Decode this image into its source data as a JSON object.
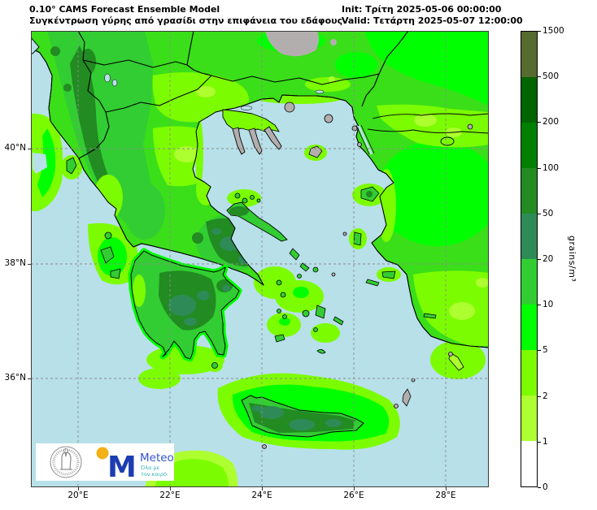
{
  "title": {
    "model_line": "0.10° CAMS Forecast Ensemble Model",
    "variable_line": "Συγκέντρωση γύρης από γρασίδι στην επιφάνεια του εδάφους",
    "init_line": "Init: Τρίτη 2025-05-06 00:00:00",
    "valid_line": "Valid: Τετάρτη 2025-05-07 12:00:00"
  },
  "map": {
    "x_tick_labels": [
      "20°E",
      "22°E",
      "24°E",
      "26°E",
      "28°E"
    ],
    "y_tick_labels": [
      "40°N",
      "38°N",
      "36°N"
    ],
    "colors": {
      "sea": "#b7e0e9",
      "no_data_grey": "#b3aeae",
      "coastline": "#000000",
      "gridline": "#8c8c8c",
      "land_base": "#3adf19"
    }
  },
  "colorbar": {
    "unit": "grains/m³",
    "tick_labels": [
      "0",
      "1",
      "2",
      "5",
      "10",
      "20",
      "50",
      "100",
      "200",
      "500",
      "1500"
    ],
    "segment_colors_bottom_to_top": [
      "#ffffff",
      "#adff2f",
      "#7cfc00",
      "#00ff00",
      "#32cd32",
      "#2e8b57",
      "#228b22",
      "#008000",
      "#006400",
      "#556b2f"
    ]
  },
  "chart_data": {
    "type": "heatmap",
    "title": "0.10° CAMS Forecast Ensemble Model — Συγκέντρωση γύρης από γρασίδι στην επιφάνεια του εδάφους",
    "init_time": "Τρίτη 2025-05-06 00:00:00",
    "valid_time": "Τετάρτη 2025-05-07 12:00:00",
    "x_ticks": [
      "20°E",
      "22°E",
      "24°E",
      "26°E",
      "28°E"
    ],
    "y_ticks": [
      "40°N",
      "38°N",
      "36°N"
    ],
    "colorbar_levels": [
      0,
      1,
      2,
      5,
      10,
      20,
      50,
      100,
      200,
      500,
      1500
    ],
    "colorbar_colors": [
      "#ffffff",
      "#adff2f",
      "#7cfc00",
      "#00ff00",
      "#32cd32",
      "#2e8b57",
      "#228b22",
      "#008000",
      "#006400",
      "#556b2f"
    ],
    "colorbar_unit": "grains/m³",
    "region": "Greece and the Aegean",
    "legend_position": "right",
    "grid": "dashed lat/lon graticule",
    "notable_readings": [
      {
        "area": "Attica / Boeotia",
        "grains_m3": "20–50"
      },
      {
        "area": "Central Peloponnese",
        "grains_m3": "20–50"
      },
      {
        "area": "Crete interior",
        "grains_m3": "20–50"
      },
      {
        "area": "NW Greece / Albania mountains",
        "grains_m3": "10–50"
      },
      {
        "area": "Mainland Greece, Thrace and W Turkey lowlands",
        "grains_m3": "2–10"
      },
      {
        "area": "Chalkidiki peninsulas, Thasos, Samothrace, Limnos",
        "grains_m3": "no data (grey)"
      },
      {
        "area": "Open sea",
        "grains_m3": "masked / below 1"
      }
    ]
  },
  "logos": {
    "meteo_name": "Meteo",
    "meteo_m": "M",
    "meteo_tagline_line1": "Όλα με",
    "meteo_tagline_line2": "τον καιρό"
  }
}
